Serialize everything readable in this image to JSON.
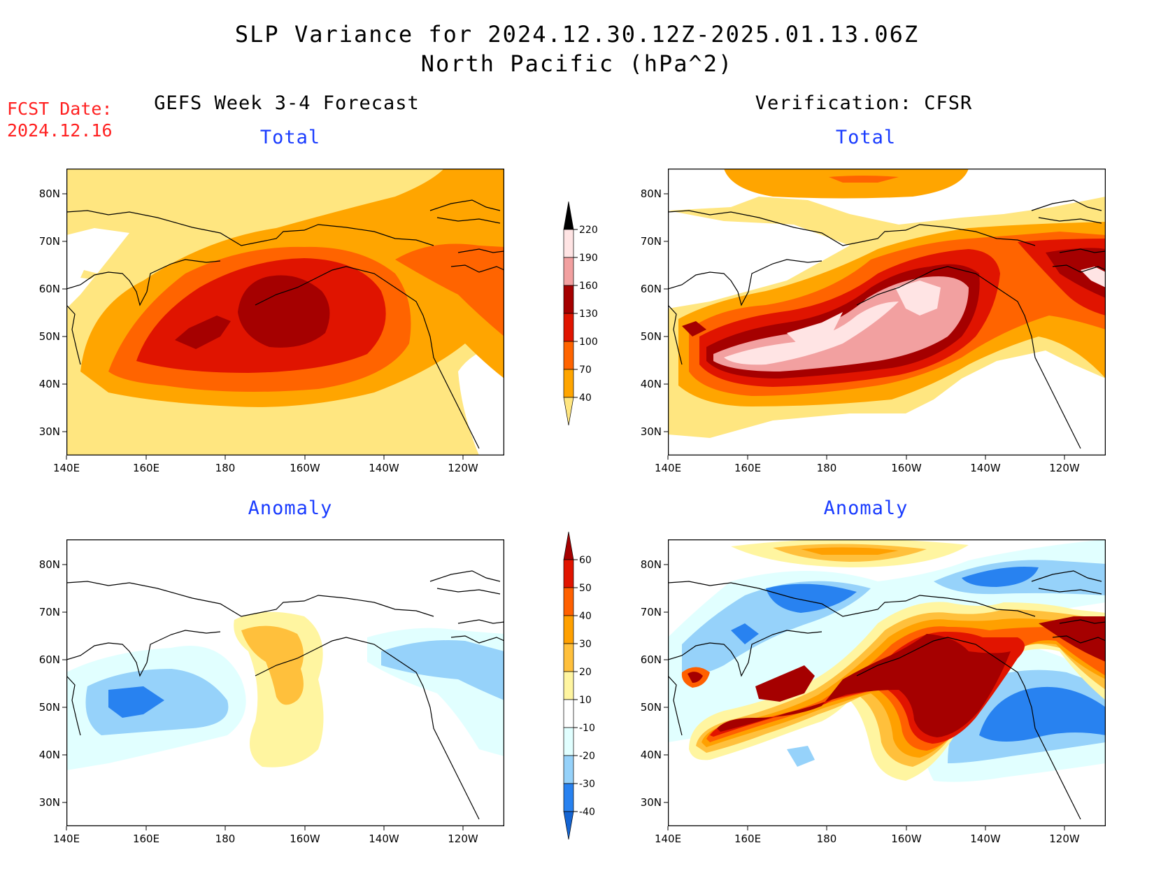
{
  "title": {
    "line1": "SLP Variance for 2024.12.30.12Z-2025.01.13.06Z",
    "line2": "North Pacific (hPa^2)"
  },
  "fcst_date": {
    "label": "FCST Date:",
    "value": "2024.12.16"
  },
  "columns": {
    "left": "GEFS Week 3-4 Forecast",
    "right": "Verification: CFSR"
  },
  "panels": {
    "fcst_total": {
      "subtitle": "Total"
    },
    "ver_total": {
      "subtitle": "Total"
    },
    "fcst_anom": {
      "subtitle": "Anomaly"
    },
    "ver_anom": {
      "subtitle": "Anomaly"
    }
  },
  "axes": {
    "lat_labels": [
      "80N",
      "70N",
      "60N",
      "50N",
      "40N",
      "30N"
    ],
    "lon_labels": [
      "140E",
      "160E",
      "180",
      "160W",
      "140W",
      "120W"
    ]
  },
  "colorbars": {
    "total": {
      "levels": [
        "40",
        "70",
        "100",
        "130",
        "160",
        "190",
        "220"
      ],
      "colors": [
        "#ffe680",
        "#ffa500",
        "#ff6400",
        "#e01400",
        "#a50000",
        "#f2a0a0",
        "#ffe4e4"
      ]
    },
    "anomaly": {
      "levels": [
        "-40",
        "-30",
        "-20",
        "-10",
        "10",
        "20",
        "30",
        "40",
        "50",
        "60"
      ],
      "colors": [
        "#1464d2",
        "#2882f0",
        "#96d2fa",
        "#e1ffff",
        "#ffffff",
        "#fff5a0",
        "#ffc03c",
        "#ffa000",
        "#ff6000",
        "#e11400",
        "#a50000"
      ]
    }
  }
}
